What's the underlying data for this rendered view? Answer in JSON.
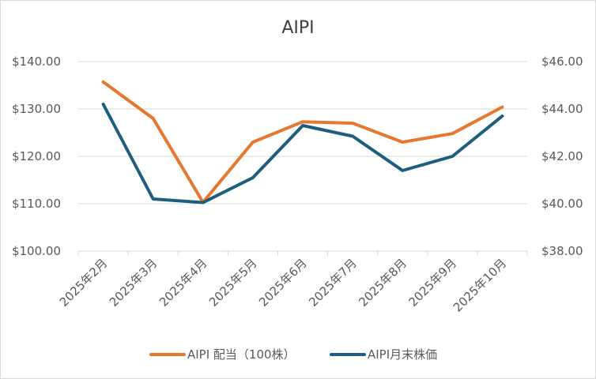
{
  "chart_data": {
    "type": "line",
    "title": "AIPI",
    "categories": [
      "2025年2月",
      "2025年3月",
      "2025年4月",
      "2025年5月",
      "2025年6月",
      "2025年7月",
      "2025年8月",
      "2025年9月",
      "2025年10月"
    ],
    "y_left": {
      "min": 100,
      "max": 140,
      "ticks": [
        "$140.00",
        "$130.00",
        "$120.00",
        "$110.00",
        "$100.00"
      ],
      "tick_values": [
        140,
        130,
        120,
        110,
        100
      ]
    },
    "y_right": {
      "min": 38,
      "max": 46,
      "ticks": [
        "$46.00",
        "$44.00",
        "$42.00",
        "$40.00",
        "$38.00"
      ],
      "tick_values": [
        46,
        44,
        42,
        40,
        38
      ]
    },
    "series": [
      {
        "name": "AIPI 配当（100株）",
        "axis": "left",
        "color": "#E8772E",
        "values": [
          135.7,
          128.0,
          110.3,
          123.0,
          127.3,
          127.0,
          123.0,
          124.8,
          130.4
        ]
      },
      {
        "name": "AIPI月末株価",
        "axis": "right",
        "color": "#1D5E7F",
        "values": [
          44.2,
          40.2,
          40.05,
          41.1,
          43.3,
          42.85,
          41.4,
          42.0,
          43.7
        ]
      }
    ],
    "gridlines": true,
    "legend_position": "bottom"
  }
}
